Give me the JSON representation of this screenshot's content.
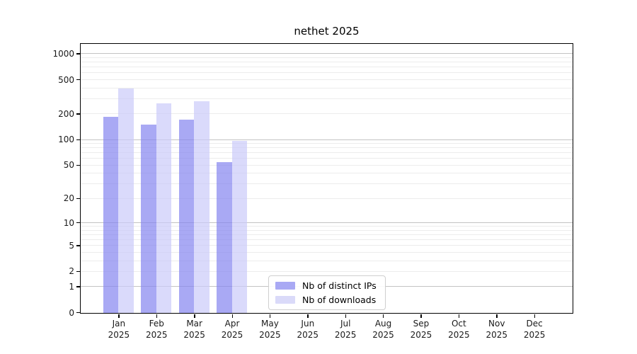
{
  "chart_data": {
    "type": "bar",
    "title": "nethet 2025",
    "categories": [
      "Jan",
      "Feb",
      "Mar",
      "Apr",
      "May",
      "Jun",
      "Jul",
      "Aug",
      "Sep",
      "Oct",
      "Nov",
      "Dec"
    ],
    "x_tick_year": "2025",
    "series": [
      {
        "name": "Nb of distinct IPs",
        "color": "#a9a9f4",
        "color_rgba": "rgba(132,132,240,0.7)",
        "values": [
          185,
          152,
          173,
          55,
          0,
          0,
          0,
          0,
          0,
          0,
          0,
          0
        ]
      },
      {
        "name": "Nb of downloads",
        "color": "#dadaf9",
        "color_rgba": "rgba(202,202,249,0.7)",
        "values": [
          395,
          268,
          286,
          97,
          0,
          0,
          0,
          0,
          0,
          0,
          0,
          0
        ]
      }
    ],
    "yscale": "log1p",
    "ylim": [
      0,
      1288
    ],
    "y_ticks": [
      0,
      1,
      2,
      5,
      10,
      20,
      50,
      100,
      200,
      500,
      1000
    ],
    "y_major_gridlines": [
      1,
      10,
      100,
      1000
    ],
    "y_minor_gridlines": [
      2,
      3,
      4,
      5,
      6,
      7,
      8,
      9,
      20,
      30,
      40,
      50,
      60,
      70,
      80,
      90,
      200,
      300,
      400,
      500,
      600,
      700,
      800,
      900
    ],
    "legend_position": "inside lower-center",
    "grid": "on"
  },
  "colors": {
    "grid_major": "#c3c3c3",
    "grid_minor": "#ececec",
    "axis": "#000000",
    "text": "#1a1a1a",
    "background": "#ffffff"
  }
}
